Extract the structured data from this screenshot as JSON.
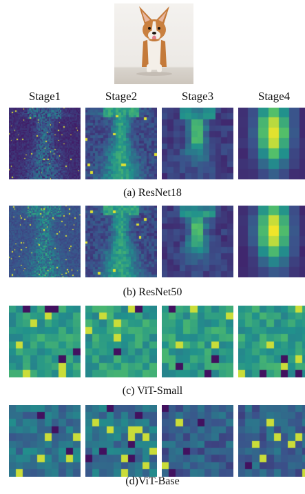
{
  "figure": {
    "stages": [
      "Stage1",
      "Stage2",
      "Stage3",
      "Stage4"
    ],
    "rows": [
      {
        "caption": "(a) ResNet18",
        "model": "ResNet18",
        "pattern": "cnn"
      },
      {
        "caption": "(b) ResNet50",
        "model": "ResNet50",
        "pattern": "cnn"
      },
      {
        "caption": "(c) ViT-Small",
        "model": "ViT-Small",
        "pattern": "vit"
      },
      {
        "caption": "(d)ViT-Base",
        "model": "ViT-Base",
        "pattern": "vit"
      }
    ],
    "colormap": [
      "#440154",
      "#3b528b",
      "#21918c",
      "#5ec962",
      "#fde725"
    ]
  }
}
